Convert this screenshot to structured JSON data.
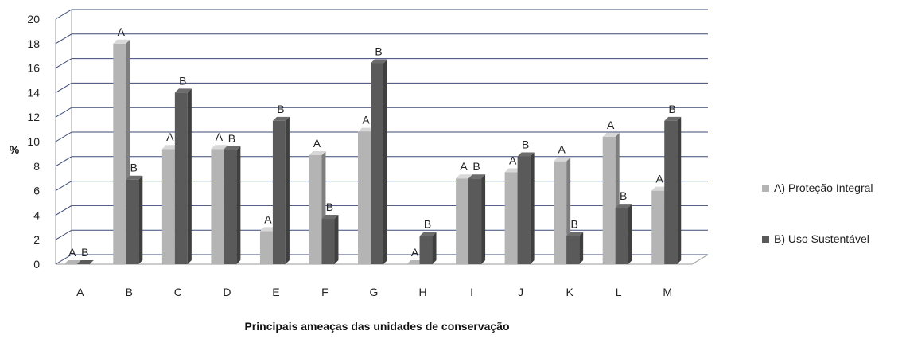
{
  "chart_data": {
    "type": "bar",
    "title": "",
    "xlabel": "Principais ameaças das unidades de conservação",
    "ylabel": "%",
    "ylim": [
      0,
      20
    ],
    "yticks": [
      0,
      2,
      4,
      6,
      8,
      10,
      12,
      14,
      16,
      18,
      20
    ],
    "grid": true,
    "legend_position": "right",
    "categories": [
      "A",
      "B",
      "C",
      "D",
      "E",
      "F",
      "G",
      "H",
      "I",
      "J",
      "K",
      "L",
      "M"
    ],
    "series": [
      {
        "name": "A) Proteção Integral",
        "bar_label": "A",
        "color": "#b4b4b4",
        "values": [
          0,
          18,
          9.4,
          9.4,
          2.7,
          8.9,
          10.8,
          0,
          7,
          7.5,
          8.4,
          10.4,
          6
        ]
      },
      {
        "name": "B) Uso Sustentável",
        "bar_label": "B",
        "color": "#5a5a5a",
        "values": [
          0,
          6.9,
          14,
          9.3,
          11.7,
          3.7,
          16.4,
          2.3,
          7,
          8.8,
          2.3,
          4.6,
          11.7
        ]
      }
    ]
  }
}
